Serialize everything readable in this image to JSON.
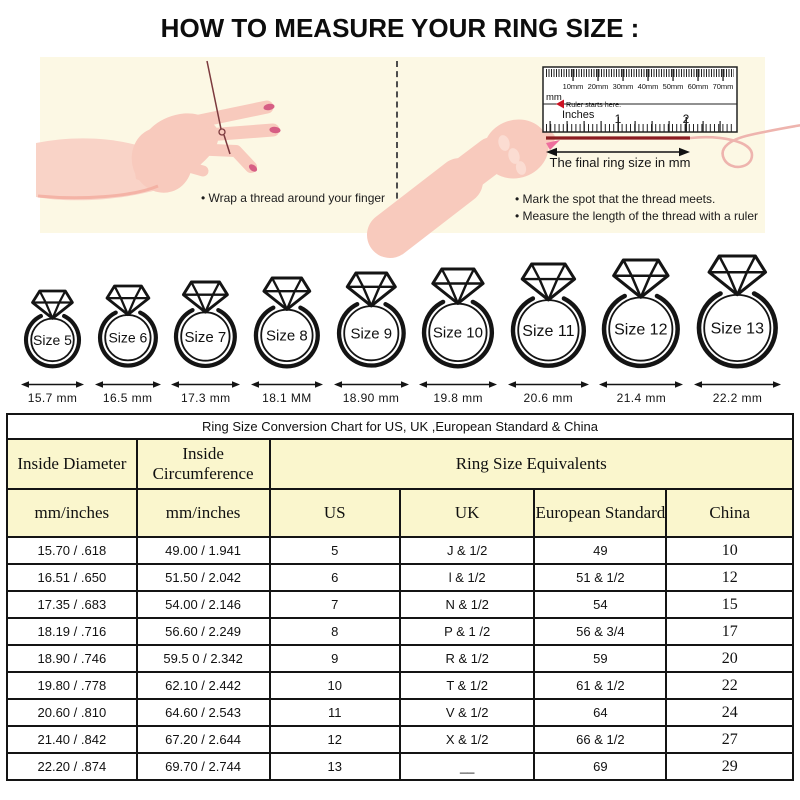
{
  "title": "HOW TO MEASURE YOUR RING SIZE :",
  "colors": {
    "panel_bg": "#fcf8e4",
    "skin": "#f8cabd",
    "skin_light": "#f9d3c7",
    "skin_shade": "#f2ab9d",
    "knuckle": "#fbdcd2",
    "nail": "#d65e84",
    "nail_bright": "#ee6f9d",
    "thread_dark": "#8b1c20",
    "thread_light": "#eeb4ae",
    "ruler_red": "#cc1122",
    "table_header_bg": "#faf6cd",
    "line_black": "#141414"
  },
  "illustration": {
    "left": {
      "caption": "• Wrap a thread around your finger"
    },
    "right": {
      "ruler": {
        "mm_labels": [
          "10mm",
          "20mm",
          "30mm",
          "40mm",
          "50mm",
          "60mm",
          "70mm"
        ],
        "mm_unit": "mm",
        "start_note": "Ruler starts here.",
        "inches_label": "Inches",
        "inch_numbers": [
          "1",
          "2"
        ]
      },
      "arrow_label": "The final ring size in mm",
      "captions": [
        "• Mark the spot that the thread meets.",
        "• Measure the length of the thread with a ruler"
      ]
    }
  },
  "rings": [
    {
      "label": "Size 5",
      "mm": 15.7,
      "width_label": "15.7 mm"
    },
    {
      "label": "Size 6",
      "mm": 16.5,
      "width_label": "16.5 mm"
    },
    {
      "label": "Size 7",
      "mm": 17.3,
      "width_label": "17.3 mm"
    },
    {
      "label": "Size 8",
      "mm": 18.1,
      "width_label": "18.1 MM"
    },
    {
      "label": "Size 9",
      "mm": 18.9,
      "width_label": "18.90 mm"
    },
    {
      "label": "Size 10",
      "mm": 19.8,
      "width_label": "19.8 mm"
    },
    {
      "label": "Size 11",
      "mm": 20.6,
      "width_label": "20.6 mm"
    },
    {
      "label": "Size 12",
      "mm": 21.4,
      "width_label": "21.4 mm"
    },
    {
      "label": "Size 13",
      "mm": 22.2,
      "width_label": "22.2 mm"
    }
  ],
  "table": {
    "title": "Ring Size Conversion Chart for US, UK ,European Standard & China",
    "group_headers": {
      "inside_diameter": "Inside Diameter",
      "inside_circumference": "Inside Circumference",
      "ring_size_equivalents": "Ring Size Equivalents"
    },
    "sub_headers": [
      "mm/inches",
      "mm/inches",
      "US",
      "UK",
      "European Standard",
      "China"
    ],
    "rows": [
      [
        "15.70 / .618",
        "49.00 / 1.941",
        "5",
        "J & 1/2",
        "49",
        "10"
      ],
      [
        "16.51 / .650",
        "51.50 / 2.042",
        "6",
        "l & 1/2",
        "51 & 1/2",
        "12"
      ],
      [
        "17.35 / .683",
        "54.00 / 2.146",
        "7",
        "N & 1/2",
        "54",
        "15"
      ],
      [
        "18.19 / .716",
        "56.60 / 2.249",
        "8",
        "P & 1 /2",
        "56 & 3/4",
        "17"
      ],
      [
        "18.90 / .746",
        "59.5 0 / 2.342",
        "9",
        "R & 1/2",
        "59",
        "20"
      ],
      [
        "19.80 / .778",
        "62.10 / 2.442",
        "10",
        "T & 1/2",
        "61 & 1/2",
        "22"
      ],
      [
        "20.60 / .810",
        "64.60 / 2.543",
        "11",
        "V & 1/2",
        "64",
        "24"
      ],
      [
        "21.40 / .842",
        "67.20 / 2.644",
        "12",
        "X & 1/2",
        "66 & 1/2",
        "27"
      ],
      [
        "22.20 / .874",
        "69.70 / 2.744",
        "13",
        "__",
        "69",
        "29"
      ]
    ]
  }
}
